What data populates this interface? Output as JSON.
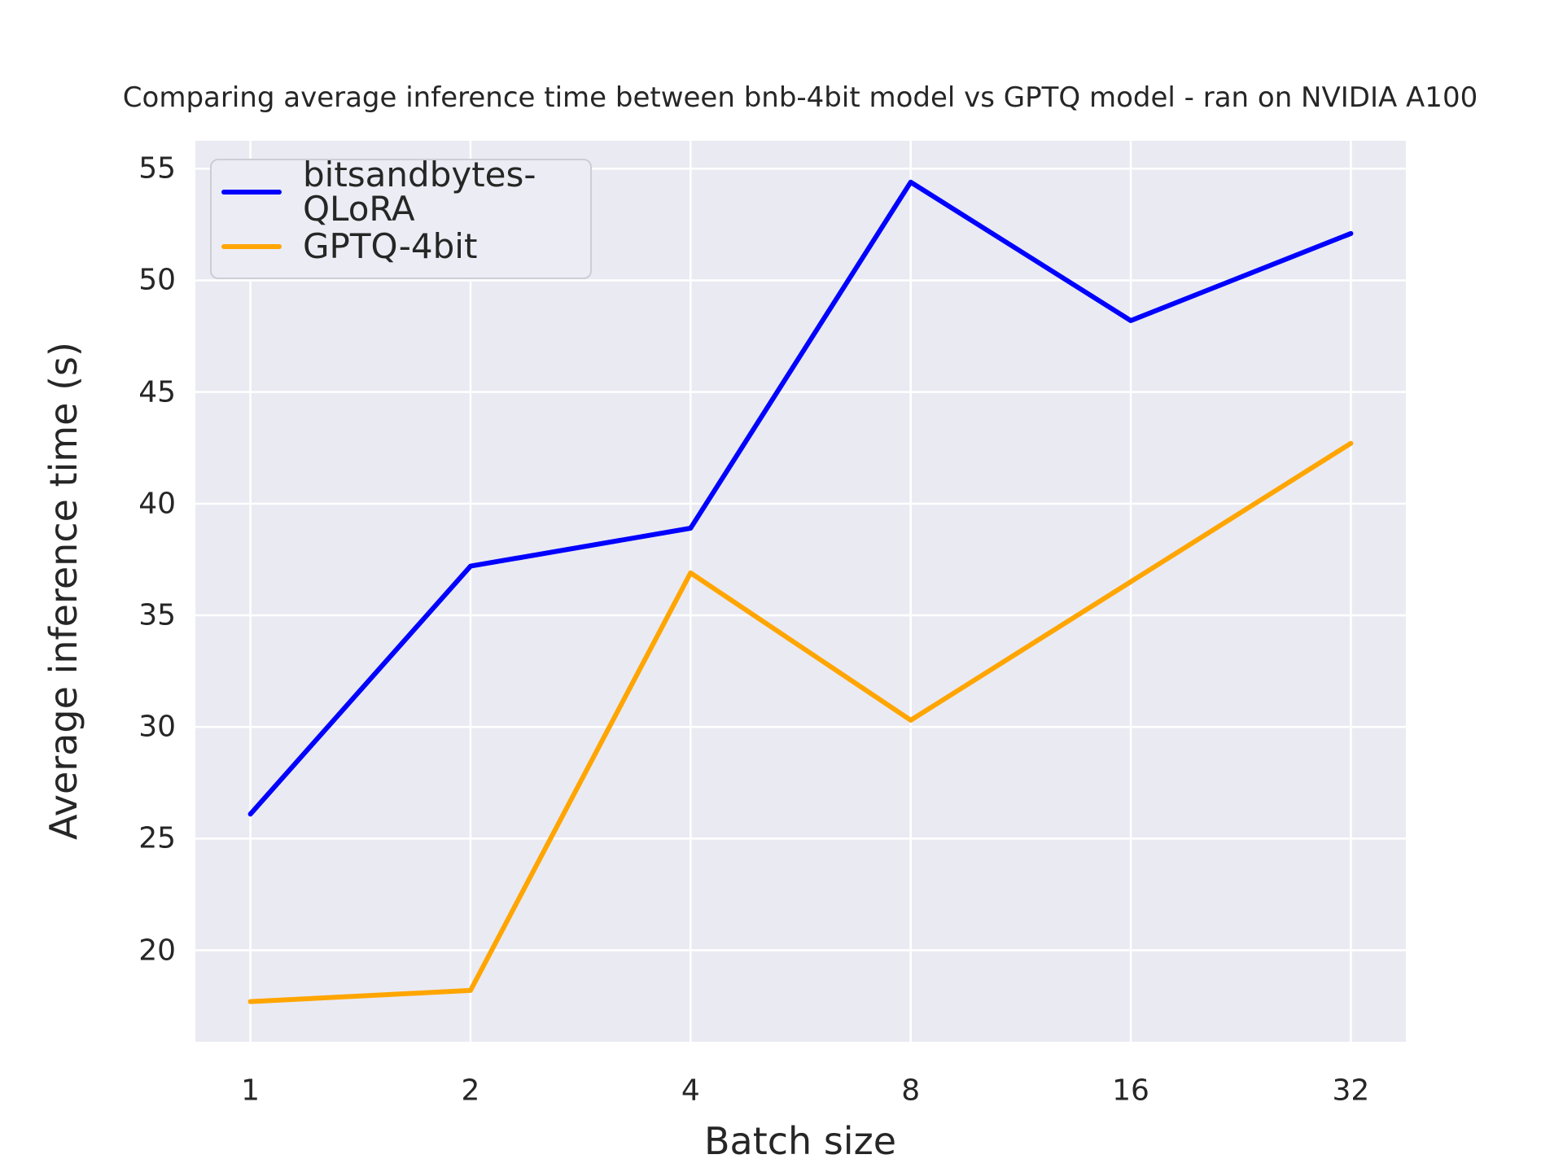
{
  "chart_data": {
    "type": "line",
    "title": "Comparing average inference time between bnb-4bit model vs GPTQ model - ran on NVIDIA A100",
    "xlabel": "Batch size",
    "ylabel": "Average inference time (s)",
    "categories": [
      1,
      2,
      4,
      8,
      16,
      32
    ],
    "x_tick_labels": [
      "1",
      "2",
      "4",
      "8",
      "16",
      "32"
    ],
    "x_scale_note": "categories equally spaced (log2 spacing of batch sizes)",
    "y_ticks": [
      20,
      25,
      30,
      35,
      40,
      45,
      50,
      55
    ],
    "ylim": [
      15.9,
      56.25
    ],
    "grid": true,
    "legend_position": "upper left",
    "series": [
      {
        "name": "bitsandbytes-QLoRA",
        "color": "#0000ff",
        "values": [
          26.1,
          37.2,
          38.9,
          54.4,
          48.2,
          52.1
        ]
      },
      {
        "name": "GPTQ-4bit",
        "color": "#ffa500",
        "values": [
          17.7,
          18.2,
          36.9,
          30.3,
          36.5,
          42.7
        ]
      }
    ]
  },
  "style": {
    "plot_background": "#eaeaf2",
    "grid_color": "#ffffff",
    "text_color": "#262626",
    "legend_background": "#ececf4",
    "legend_border": "#cdcdd6"
  }
}
